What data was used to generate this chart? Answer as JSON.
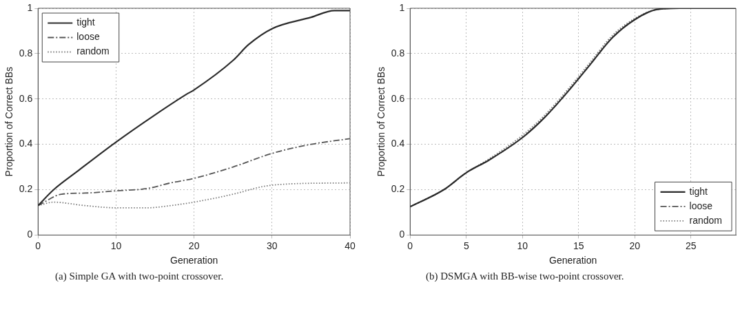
{
  "chart_data": [
    {
      "type": "line",
      "xlabel": "Generation",
      "ylabel": "Proportion of Correct BBs",
      "xlim": [
        0,
        40
      ],
      "ylim": [
        0,
        1
      ],
      "xticks": [
        0,
        10,
        20,
        30,
        40
      ],
      "yticks": [
        0,
        0.2,
        0.4,
        0.6,
        0.8,
        1
      ],
      "grid": true,
      "legend": "top left",
      "marker": "none",
      "annotations": [
        "(a) Simple GA with two-point crossover."
      ],
      "series": [
        {
          "name": "tight",
          "color": "#2b2b2b",
          "line_style": "solid",
          "x": [
            0,
            2,
            5,
            10,
            15,
            19,
            20,
            25,
            27,
            30,
            35,
            38,
            40
          ],
          "values": [
            0.13,
            0.2,
            0.28,
            0.41,
            0.53,
            0.62,
            0.64,
            0.77,
            0.84,
            0.91,
            0.96,
            0.99,
            0.99
          ]
        },
        {
          "name": "loose",
          "color": "#555555",
          "line_style": "dashed",
          "x": [
            0,
            3,
            6,
            10,
            14,
            17,
            20,
            25,
            30,
            35,
            40
          ],
          "values": [
            0.13,
            0.18,
            0.185,
            0.195,
            0.205,
            0.23,
            0.25,
            0.3,
            0.36,
            0.4,
            0.425
          ]
        },
        {
          "name": "random",
          "color": "#777777",
          "line_style": "dotted",
          "x": [
            0,
            2,
            6,
            10,
            14,
            17,
            20,
            25,
            29,
            32,
            40
          ],
          "values": [
            0.13,
            0.145,
            0.13,
            0.12,
            0.12,
            0.13,
            0.145,
            0.18,
            0.215,
            0.225,
            0.23
          ]
        }
      ]
    },
    {
      "type": "line",
      "xlabel": "Generation",
      "ylabel": "Proportion of Correct BBs",
      "xlim": [
        0,
        29
      ],
      "ylim": [
        0,
        1
      ],
      "xticks": [
        0,
        5,
        10,
        15,
        20,
        25
      ],
      "yticks": [
        0,
        0.2,
        0.4,
        0.6,
        0.8,
        1
      ],
      "grid": true,
      "legend": "bottom right",
      "marker": "none",
      "annotations": [
        "(b) DSMGA with BB-wise two-point crossover."
      ],
      "series": [
        {
          "name": "tight",
          "color": "#2b2b2b",
          "line_style": "solid",
          "x": [
            0,
            3,
            5,
            7,
            10,
            12,
            14,
            16,
            18,
            20,
            22,
            24,
            29
          ],
          "values": [
            0.125,
            0.2,
            0.275,
            0.33,
            0.43,
            0.52,
            0.63,
            0.75,
            0.87,
            0.95,
            0.995,
            1,
            1
          ]
        },
        {
          "name": "loose",
          "color": "#555555",
          "line_style": "dashed",
          "x": [
            0,
            3,
            5,
            7,
            10,
            12,
            14,
            16,
            18,
            20,
            22,
            24,
            29
          ],
          "values": [
            0.125,
            0.2,
            0.275,
            0.33,
            0.43,
            0.52,
            0.63,
            0.75,
            0.87,
            0.95,
            0.995,
            1,
            1
          ]
        },
        {
          "name": "random",
          "color": "#777777",
          "line_style": "dotted",
          "x": [
            0,
            3,
            5,
            7,
            10,
            12,
            14,
            16,
            18,
            20,
            22,
            24,
            29
          ],
          "values": [
            0.125,
            0.2,
            0.275,
            0.335,
            0.44,
            0.53,
            0.64,
            0.76,
            0.88,
            0.955,
            0.995,
            1,
            1
          ]
        }
      ]
    }
  ]
}
